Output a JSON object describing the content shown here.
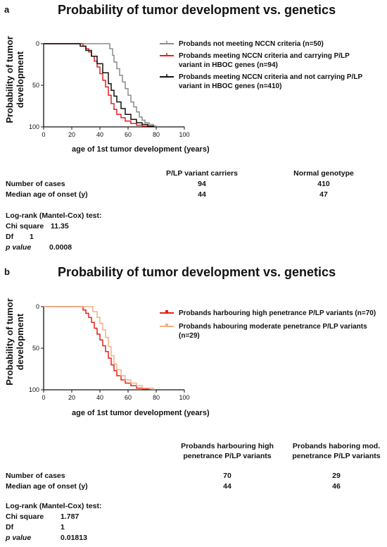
{
  "panel_a": {
    "letter": "a",
    "title": "Probability of tumor development vs. genetics",
    "ylabel_line1": "Probability of tumor",
    "ylabel_line2": "development",
    "xlabel": "age of 1st tumor development (years)",
    "legend": [
      {
        "text": "Probands not meeting NCCN criteria (n=50)",
        "color": "#8c8c8c"
      },
      {
        "text": "Probands meeting NCCN criteria and carrying P/LP variant in HBOC genes (n=94)",
        "color": "#e3211c"
      },
      {
        "text": "Probands meeting NCCN criteria and not carrying P/LP variant in HBOC genes (n=410)",
        "color": "#111111"
      }
    ],
    "table": {
      "col_headers": [
        "P/LP variant carriers",
        "Normal genotype"
      ],
      "rows": [
        {
          "label": "Number of cases",
          "values": [
            "94",
            "410"
          ]
        },
        {
          "label": "Median age of onset (y)",
          "values": [
            "44",
            "47"
          ]
        }
      ]
    },
    "stats": {
      "heading": "Log-rank (Mantel-Cox) test:",
      "rows": [
        {
          "label": "Chi square",
          "value": "11.35"
        },
        {
          "label": "Df",
          "value": "1"
        },
        {
          "label": "p value",
          "value": "0.0008"
        }
      ]
    }
  },
  "panel_b": {
    "letter": "b",
    "title": "Probability of tumor development vs. genetics",
    "ylabel_line1": "Probability of tumor",
    "ylabel_line2": "development",
    "xlabel": "age of 1st tumor development (years)",
    "legend": [
      {
        "text": "Probands harbouring high penetrance P/LP variants (n=70)",
        "color": "#e3211c"
      },
      {
        "text": "Probands habouring moderate penetrance P/LP variants (n=29)",
        "color": "#f4b183"
      }
    ],
    "table": {
      "col_headers": [
        "Probands harbouring  high penetrance P/LP variants",
        "Probands haboring mod. penetrance P/LP variants"
      ],
      "rows": [
        {
          "label": "Number of cases",
          "values": [
            "70",
            "29"
          ]
        },
        {
          "label": "Median age of onset (y)",
          "values": [
            "44",
            "46"
          ]
        }
      ]
    },
    "stats": {
      "heading": "Log-rank (Mantel-Cox) test:",
      "rows": [
        {
          "label": "Chi square",
          "value": "1.787"
        },
        {
          "label": "Df",
          "value": "1"
        },
        {
          "label": "p value",
          "value": "0.01813"
        }
      ]
    }
  },
  "chart_data": [
    {
      "type": "line",
      "step": true,
      "title": "Probability of tumor development vs. genetics",
      "xlabel": "age of 1st tumor development (years)",
      "ylabel": "Probability of tumor development",
      "xlim": [
        0,
        100
      ],
      "ylim": [
        0,
        100
      ],
      "y_inverted": true,
      "xticks": [
        0,
        20,
        40,
        60,
        80,
        100
      ],
      "yticks": [
        0,
        50,
        100
      ],
      "legend_position": "right",
      "series": [
        {
          "name": "Probands not meeting NCCN criteria (n=50)",
          "color": "#8c8c8c",
          "x": [
            0,
            45,
            47,
            49,
            50,
            52,
            54,
            56,
            58,
            60,
            62,
            64,
            66,
            68,
            70,
            72,
            75,
            78,
            80
          ],
          "y": [
            0,
            0,
            6,
            14,
            22,
            30,
            38,
            46,
            54,
            62,
            70,
            76,
            82,
            88,
            92,
            95,
            97,
            99,
            100
          ]
        },
        {
          "name": "Probands meeting NCCN criteria and carrying P/LP variant in HBOC genes (n=94)",
          "color": "#e3211c",
          "x": [
            0,
            25,
            28,
            30,
            32,
            34,
            36,
            38,
            40,
            42,
            44,
            46,
            48,
            50,
            52,
            55,
            58,
            62,
            66,
            70,
            75,
            78
          ],
          "y": [
            0,
            0,
            3,
            6,
            10,
            15,
            21,
            28,
            36,
            44,
            52,
            62,
            72,
            79,
            85,
            89,
            93,
            96,
            98,
            99,
            99,
            100
          ]
        },
        {
          "name": "Probands meeting NCCN criteria and not carrying P/LP variant in HBOC genes (n=410)",
          "color": "#111111",
          "x": [
            0,
            22,
            26,
            30,
            34,
            38,
            42,
            46,
            48,
            50,
            52,
            55,
            58,
            62,
            66,
            70,
            74,
            78
          ],
          "y": [
            0,
            0,
            3,
            8,
            15,
            24,
            35,
            48,
            56,
            63,
            70,
            78,
            85,
            91,
            95,
            97,
            99,
            100
          ]
        }
      ]
    },
    {
      "type": "line",
      "step": true,
      "title": "Probability of tumor development vs. genetics",
      "xlabel": "age of 1st tumor development (years)",
      "ylabel": "Probability of tumor development",
      "xlim": [
        0,
        100
      ],
      "ylim": [
        0,
        100
      ],
      "y_inverted": true,
      "xticks": [
        0,
        20,
        40,
        60,
        80,
        100
      ],
      "yticks": [
        0,
        50,
        100
      ],
      "legend_position": "right",
      "series": [
        {
          "name": "Probands harbouring high penetrance P/LP variants (n=70)",
          "color": "#e3211c",
          "x": [
            0,
            25,
            28,
            30,
            32,
            34,
            36,
            38,
            40,
            42,
            44,
            46,
            48,
            50,
            52,
            55,
            58,
            62,
            66,
            70,
            75
          ],
          "y": [
            0,
            0,
            4,
            8,
            13,
            19,
            26,
            33,
            40,
            47,
            54,
            62,
            70,
            77,
            83,
            88,
            92,
            95,
            98,
            99,
            100
          ]
        },
        {
          "name": "Probands habouring moderate penetrance P/LP variants (n=29)",
          "color": "#f4b183",
          "x": [
            0,
            32,
            35,
            38,
            40,
            42,
            44,
            46,
            48,
            50,
            52,
            55,
            58,
            62,
            66,
            70,
            78
          ],
          "y": [
            0,
            0,
            6,
            13,
            20,
            28,
            37,
            48,
            59,
            69,
            76,
            83,
            88,
            92,
            95,
            98,
            100
          ]
        }
      ]
    }
  ]
}
